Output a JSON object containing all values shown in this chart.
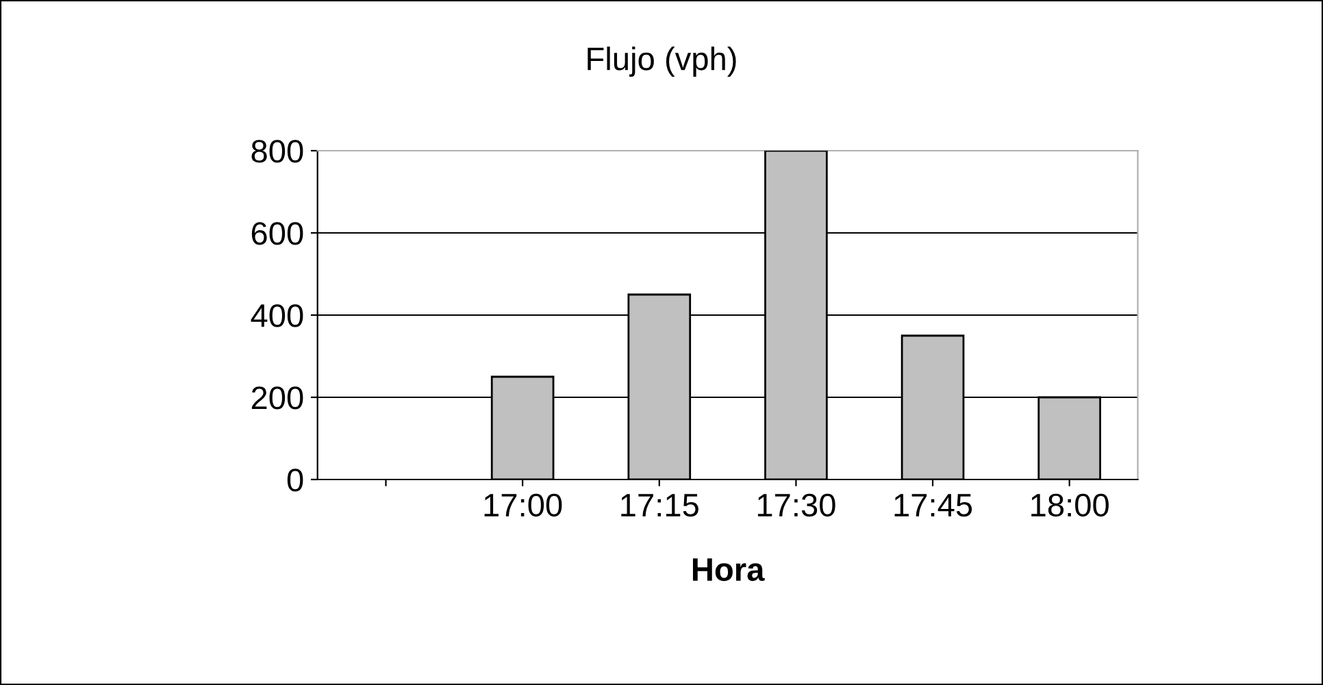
{
  "chart_data": {
    "type": "bar",
    "title": "Flujo (vph)",
    "xlabel": "Hora",
    "categories": [
      null,
      "17:00",
      "17:15",
      "17:30",
      "17:45",
      "18:00"
    ],
    "values": [
      null,
      250,
      450,
      800,
      350,
      200
    ],
    "color": "#c0c0c0",
    "ylim": [
      0,
      800
    ],
    "yticks": [
      0,
      200,
      400,
      600,
      800
    ],
    "grid": "y",
    "legend": false
  }
}
